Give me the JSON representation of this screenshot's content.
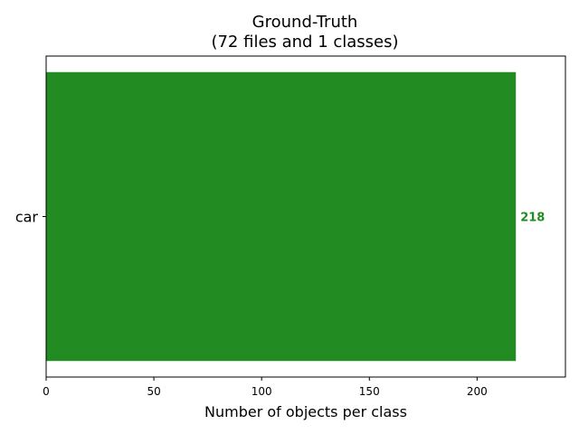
{
  "chart_data": {
    "type": "bar",
    "orientation": "horizontal",
    "title": "Ground-Truth",
    "subtitle": "(72 files and 1 classes)",
    "xlabel": "Number of objects per class",
    "ylabel": "",
    "categories": [
      "car"
    ],
    "values": [
      218
    ],
    "value_labels": [
      "218"
    ],
    "xlim": [
      0,
      241
    ],
    "xticks": [
      0,
      50,
      100,
      150,
      200
    ],
    "xtick_labels": [
      "0",
      "50",
      "100",
      "150",
      "200"
    ],
    "grid": false,
    "bar_color": "#228b22",
    "value_label_color": "#228b22"
  }
}
